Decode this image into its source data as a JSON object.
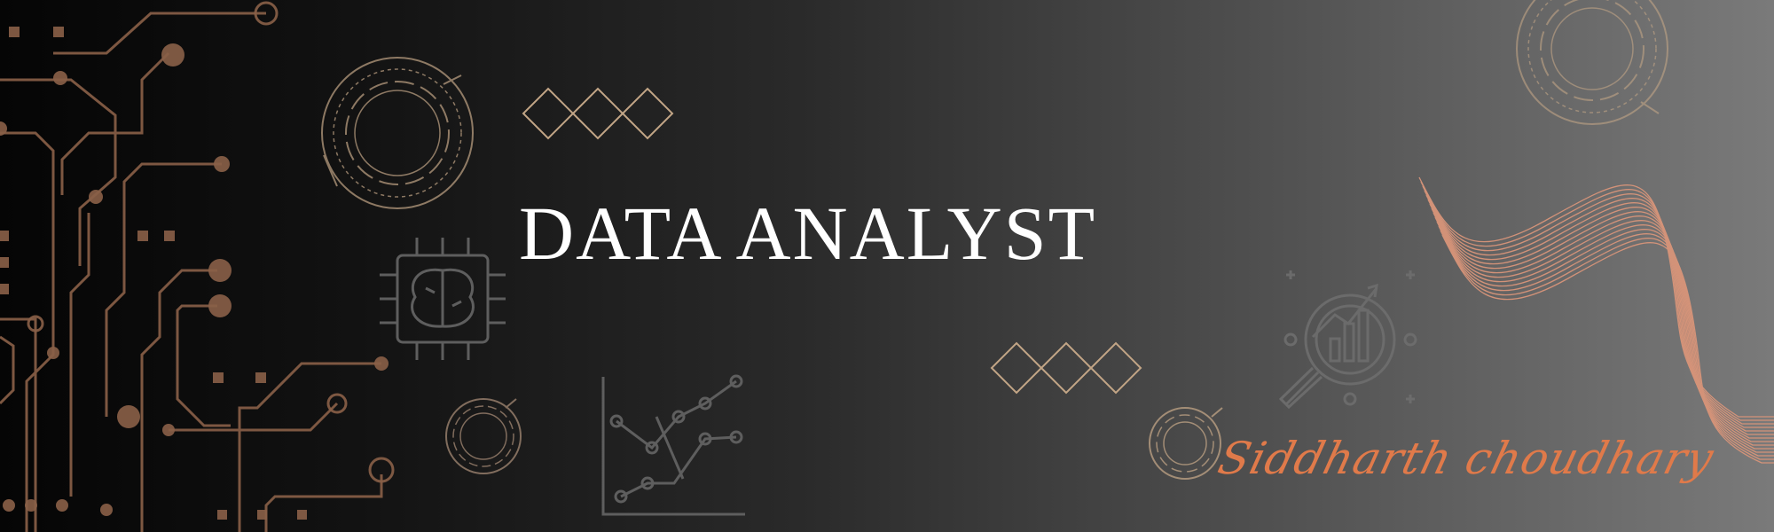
{
  "banner": {
    "title": "DATA ANALYST",
    "signature": "Siddharth choudhary"
  },
  "colors": {
    "accent": "#e07a4a",
    "circuit": "#8a6048",
    "line_gold": "#c2a586",
    "icon_gray": "#6e6e6e",
    "ribbon": "#d9957a"
  },
  "icons": [
    "circuit-board-icon",
    "ai-brain-chip-icon",
    "line-chart-icon",
    "analytics-magnifier-icon",
    "wave-ribbon-icon"
  ]
}
